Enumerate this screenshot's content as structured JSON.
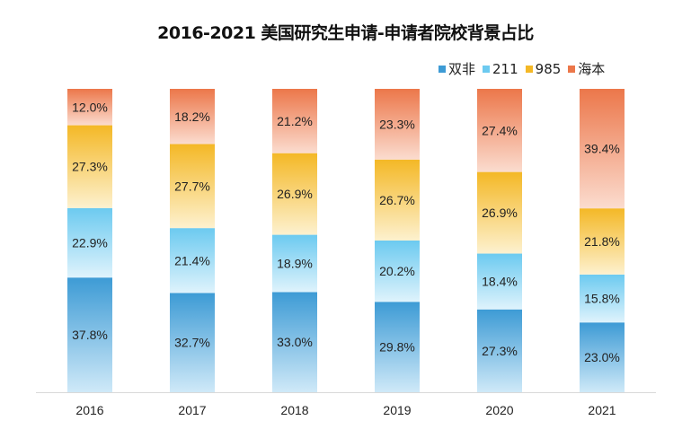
{
  "chart_data": {
    "type": "bar",
    "stacked": true,
    "title": "2016-2021 美国研究生申请-申请者院校背景占比",
    "categories": [
      "2016",
      "2017",
      "2018",
      "2019",
      "2020",
      "2021"
    ],
    "series": [
      {
        "name": "双非",
        "color": "#3d9bd5",
        "values": [
          37.8,
          32.7,
          33.0,
          29.8,
          27.3,
          23.0
        ],
        "labels": [
          "37.8%",
          "32.7%",
          "33.0%",
          "29.8%",
          "27.3%",
          "23.0%"
        ]
      },
      {
        "name": "211",
        "color": "#6ccaf0",
        "values": [
          22.9,
          21.4,
          18.9,
          20.2,
          18.4,
          15.8
        ],
        "labels": [
          "22.9%",
          "21.4%",
          "18.9%",
          "20.2%",
          "18.4%",
          "15.8%"
        ]
      },
      {
        "name": "985",
        "color": "#f4b826",
        "values": [
          27.3,
          27.7,
          26.9,
          26.7,
          26.9,
          21.8
        ],
        "labels": [
          "27.3%",
          "27.7%",
          "26.9%",
          "26.7%",
          "26.9%",
          "21.8%"
        ]
      },
      {
        "name": "海本",
        "color": "#ec774a",
        "values": [
          12.0,
          18.2,
          21.2,
          23.3,
          27.4,
          39.4
        ],
        "labels": [
          "12.0%",
          "18.2%",
          "21.2%",
          "23.3%",
          "27.4%",
          "39.4%"
        ]
      }
    ],
    "ylim": [
      0,
      100
    ],
    "legend": "top-right",
    "grid": false
  }
}
